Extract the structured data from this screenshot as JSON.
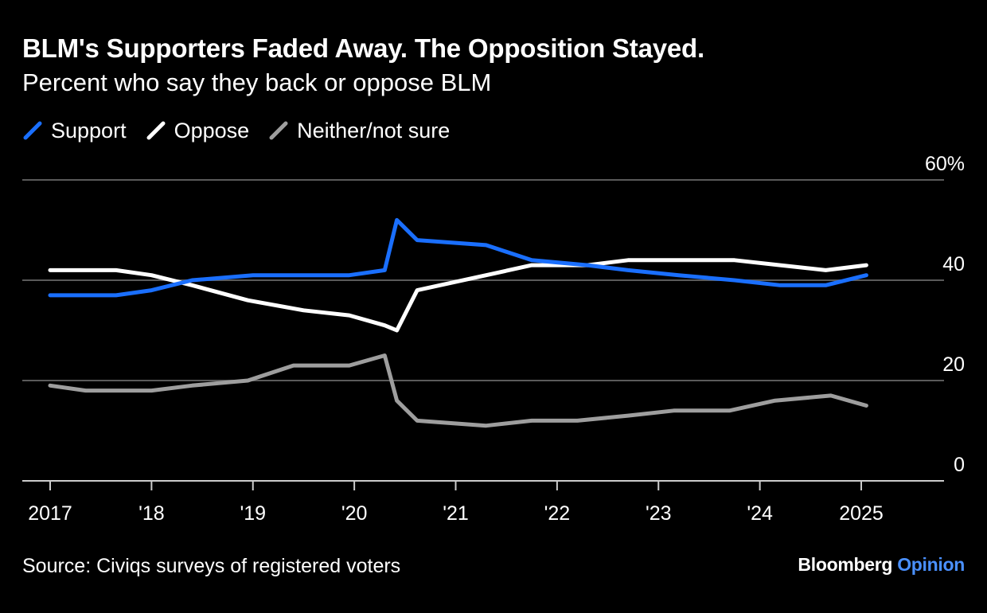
{
  "brand": {
    "name": "Bloomberg",
    "section": "Opinion"
  },
  "colors": {
    "background": "#000000",
    "support": "#1a6fff",
    "oppose": "#ffffff",
    "neither": "#9e9e9e",
    "gridline": "#5a5a5a",
    "axis": "#cccccc"
  },
  "chart_data": {
    "type": "line",
    "title": "BLM's Supporters Faded Away. The Opposition Stayed.",
    "subtitle": "Percent who say they back or oppose BLM",
    "source": "Source: Civiqs surveys of registered voters",
    "xlabel": "",
    "ylabel": "",
    "ylim": [
      0,
      60
    ],
    "xlim": [
      2017,
      2025.75
    ],
    "y_ticks": [
      {
        "value": 60,
        "label": "60%"
      },
      {
        "value": 40,
        "label": "40"
      },
      {
        "value": 20,
        "label": "20"
      },
      {
        "value": 0,
        "label": "0"
      }
    ],
    "x_ticks": [
      {
        "value": 2017,
        "label": "2017"
      },
      {
        "value": 2018,
        "label": "'18"
      },
      {
        "value": 2019,
        "label": "'19"
      },
      {
        "value": 2020,
        "label": "'20"
      },
      {
        "value": 2021,
        "label": "'21"
      },
      {
        "value": 2022,
        "label": "'22"
      },
      {
        "value": 2023,
        "label": "'23"
      },
      {
        "value": 2024,
        "label": "'24"
      },
      {
        "value": 2025,
        "label": "2025"
      }
    ],
    "legend_position": "top-left",
    "series": [
      {
        "name": "Support",
        "color_key": "support",
        "x": [
          2017.0,
          2017.35,
          2017.65,
          2018.0,
          2018.4,
          2019.0,
          2019.5,
          2019.95,
          2020.3,
          2020.42,
          2020.62,
          2021.3,
          2021.75,
          2022.3,
          2022.7,
          2023.2,
          2023.75,
          2024.2,
          2024.65,
          2025.05
        ],
        "values": [
          37,
          37,
          37,
          38,
          40,
          41,
          41,
          41,
          42,
          52,
          48,
          47,
          44,
          43,
          42,
          41,
          40,
          39,
          39,
          41
        ]
      },
      {
        "name": "Oppose",
        "color_key": "oppose",
        "x": [
          2017.0,
          2017.35,
          2017.65,
          2018.0,
          2018.4,
          2018.95,
          2019.5,
          2019.95,
          2020.3,
          2020.42,
          2020.62,
          2021.3,
          2021.75,
          2022.3,
          2022.7,
          2023.2,
          2023.75,
          2024.2,
          2024.65,
          2025.05
        ],
        "values": [
          42,
          42,
          42,
          41,
          39,
          36,
          34,
          33,
          31,
          30,
          38,
          41,
          43,
          43,
          44,
          44,
          44,
          43,
          42,
          43
        ]
      },
      {
        "name": "Neither/not sure",
        "color_key": "neither",
        "x": [
          2017.0,
          2017.35,
          2017.65,
          2018.0,
          2018.4,
          2018.95,
          2019.4,
          2019.95,
          2020.3,
          2020.42,
          2020.62,
          2021.3,
          2021.75,
          2022.2,
          2022.7,
          2023.15,
          2023.7,
          2024.15,
          2024.7,
          2025.05
        ],
        "values": [
          19,
          18,
          18,
          18,
          19,
          20,
          23,
          23,
          25,
          16,
          12,
          11,
          12,
          12,
          13,
          14,
          14,
          16,
          17,
          15
        ]
      }
    ]
  }
}
